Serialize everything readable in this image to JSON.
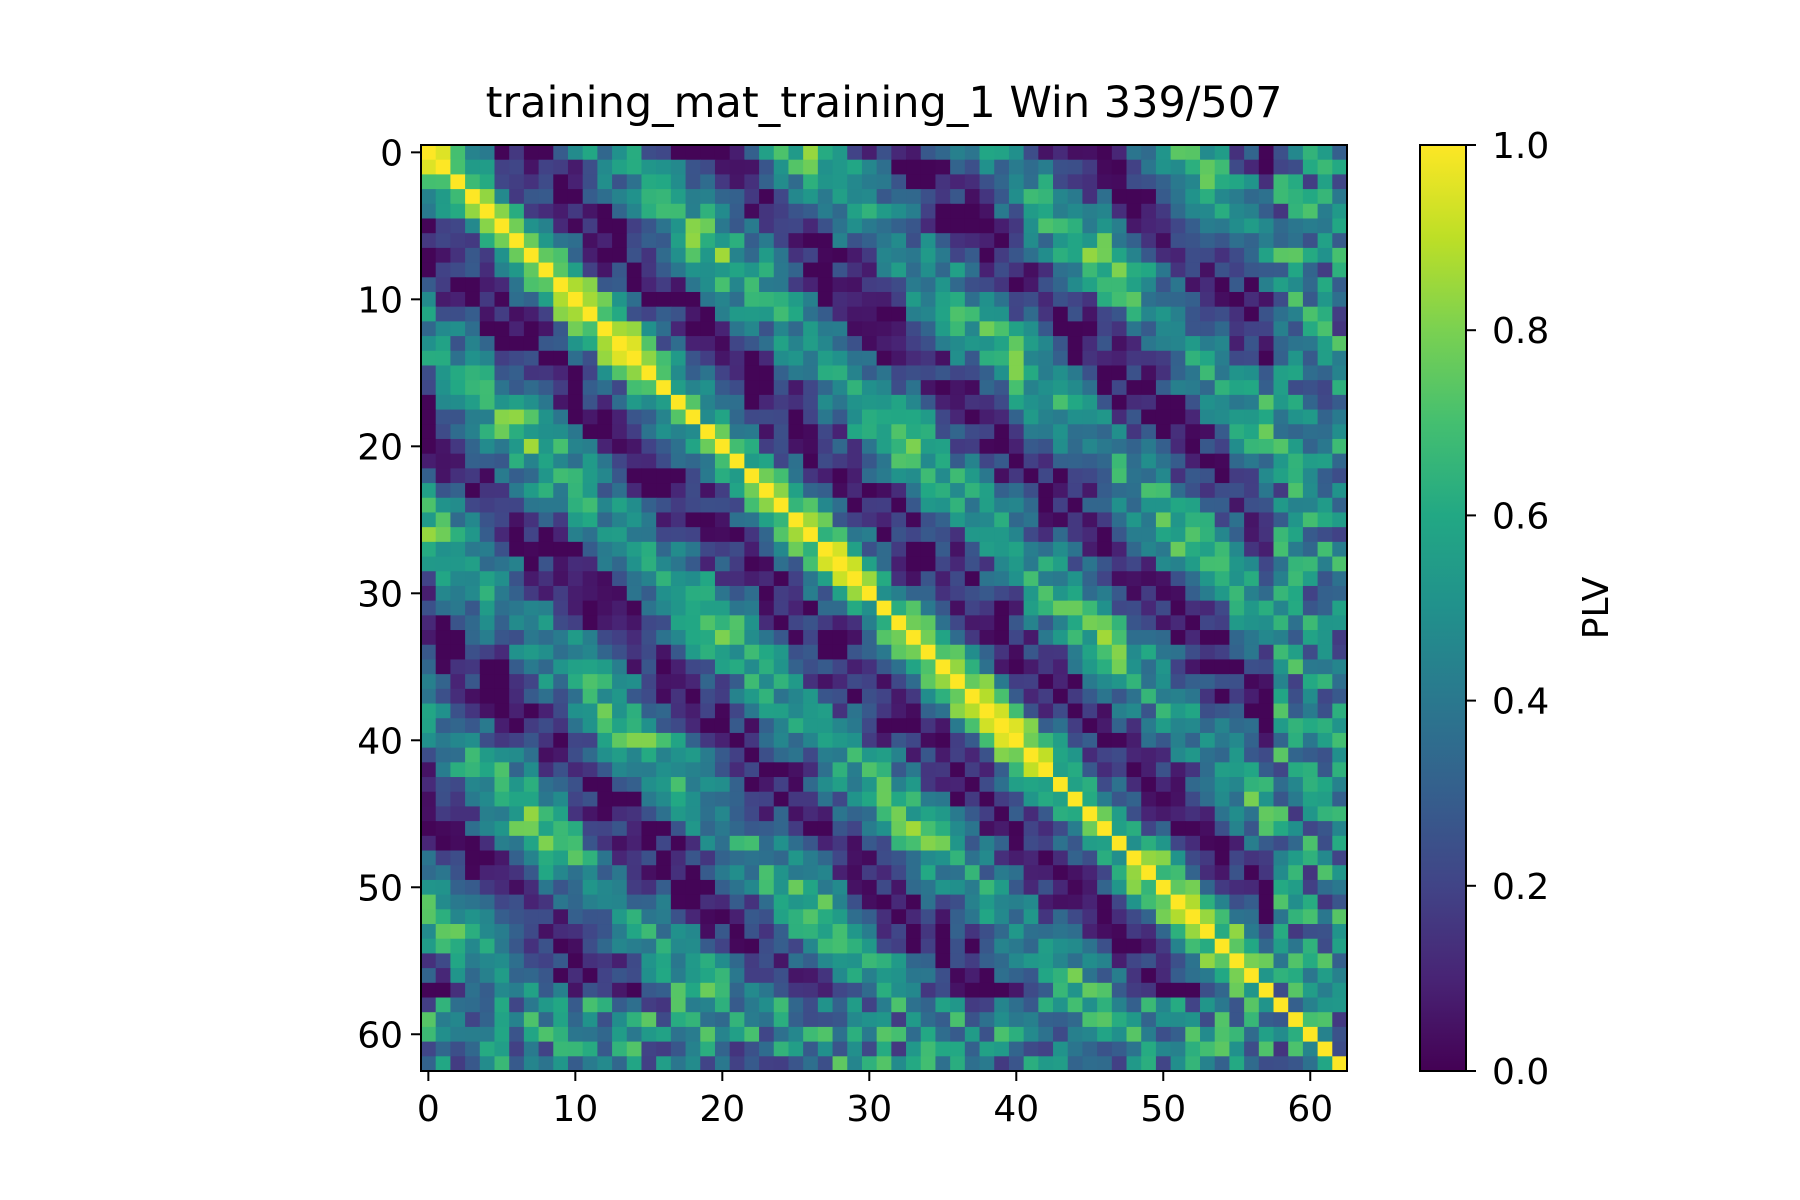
{
  "chart_data": {
    "type": "heatmap",
    "title": "training_mat_training_1 Win 339/507",
    "xlabel": "",
    "ylabel": "",
    "n_rows": 63,
    "n_cols": 63,
    "x_ticks": [
      0,
      10,
      20,
      30,
      40,
      50,
      60
    ],
    "y_ticks": [
      0,
      10,
      20,
      30,
      40,
      50,
      60
    ],
    "xlim": [
      -0.5,
      62.5
    ],
    "ylim": [
      62.5,
      -0.5
    ],
    "colormap": "viridis",
    "colorbar": {
      "label": "PLV",
      "range": [
        0.0,
        1.0
      ],
      "ticks": [
        "0.0",
        "0.2",
        "0.4",
        "0.6",
        "0.8",
        "1.0"
      ]
    },
    "diagonal_value": 1.0,
    "off_diagonal_range": [
      0.0,
      0.95
    ],
    "pattern": "symmetric banded structure with high-PLV diagonal stripes at period ~13 channels and bright clusters near channels 10-15, 20-25, 30-35, 45-50, 55-57"
  }
}
